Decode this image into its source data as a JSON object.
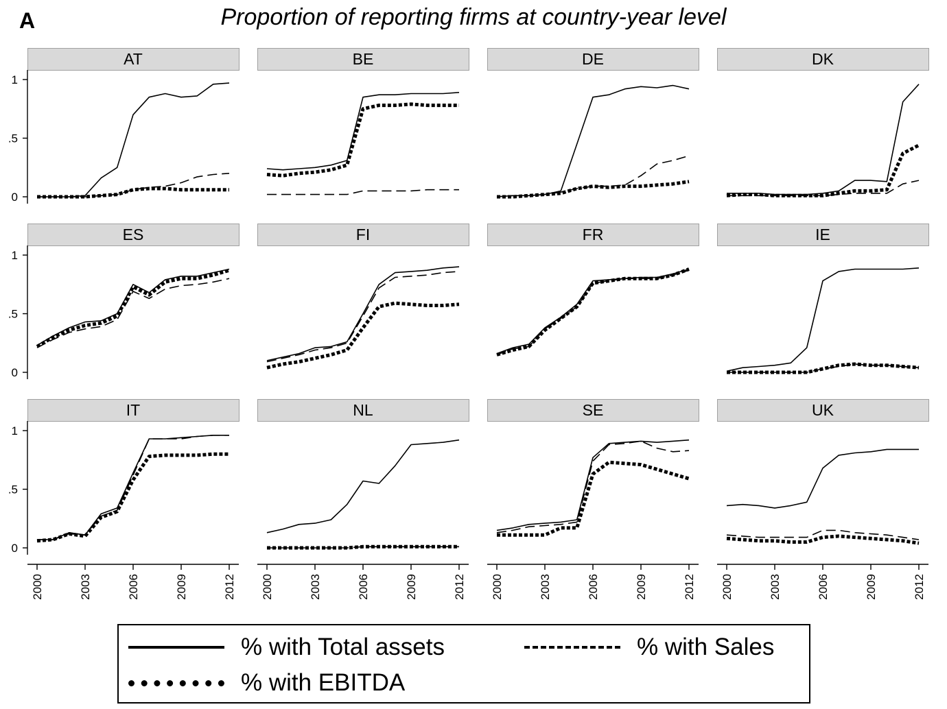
{
  "figure": {
    "panel_letter": "A",
    "title": "Proportion of reporting firms at country-year level"
  },
  "legend": {
    "items": [
      {
        "label": "% with Total assets",
        "style": "solid"
      },
      {
        "label": "% with Sales",
        "style": "dashed"
      },
      {
        "label": "% with EBITDA",
        "style": "dotted"
      }
    ]
  },
  "chart_data": {
    "type": "line",
    "title": "Proportion of reporting firms at country-year level",
    "x": [
      2000,
      2001,
      2002,
      2003,
      2004,
      2005,
      2006,
      2007,
      2008,
      2009,
      2010,
      2011,
      2012
    ],
    "x_ticks": [
      "2000",
      "2003",
      "2006",
      "2009",
      "2012"
    ],
    "y_ticks": [
      "0",
      ".5",
      "1"
    ],
    "ylim": [
      0,
      1
    ],
    "legend_position": "bottom",
    "grid": false,
    "panels": [
      {
        "name": "AT",
        "series": [
          {
            "name": "% with Total assets",
            "values": [
              0.0,
              0.0,
              0.0,
              0.01,
              0.16,
              0.25,
              0.7,
              0.85,
              0.88,
              0.85,
              0.86,
              0.96,
              0.97
            ]
          },
          {
            "name": "% with Sales",
            "values": [
              0.0,
              0.0,
              0.0,
              0.0,
              0.01,
              0.02,
              0.06,
              0.08,
              0.09,
              0.12,
              0.17,
              0.19,
              0.2
            ]
          },
          {
            "name": "% with EBITDA",
            "values": [
              0.0,
              0.0,
              0.0,
              0.0,
              0.01,
              0.02,
              0.06,
              0.07,
              0.07,
              0.06,
              0.06,
              0.06,
              0.06
            ]
          }
        ]
      },
      {
        "name": "BE",
        "series": [
          {
            "name": "% with Total assets",
            "values": [
              0.24,
              0.23,
              0.24,
              0.25,
              0.27,
              0.31,
              0.85,
              0.87,
              0.87,
              0.88,
              0.88,
              0.88,
              0.89
            ]
          },
          {
            "name": "% with Sales",
            "values": [
              0.02,
              0.02,
              0.02,
              0.02,
              0.02,
              0.02,
              0.05,
              0.05,
              0.05,
              0.05,
              0.06,
              0.06,
              0.06
            ]
          },
          {
            "name": "% with EBITDA",
            "values": [
              0.19,
              0.18,
              0.2,
              0.21,
              0.23,
              0.27,
              0.75,
              0.78,
              0.78,
              0.79,
              0.78,
              0.78,
              0.78
            ]
          }
        ]
      },
      {
        "name": "DE",
        "series": [
          {
            "name": "% with Total assets",
            "values": [
              0.0,
              0.01,
              0.01,
              0.02,
              0.05,
              0.45,
              0.85,
              0.87,
              0.92,
              0.94,
              0.93,
              0.95,
              0.92
            ]
          },
          {
            "name": "% with Sales",
            "values": [
              0.0,
              0.01,
              0.01,
              0.02,
              0.04,
              0.07,
              0.09,
              0.09,
              0.1,
              0.18,
              0.28,
              0.31,
              0.35
            ]
          },
          {
            "name": "% with EBITDA",
            "values": [
              0.0,
              0.0,
              0.01,
              0.02,
              0.03,
              0.07,
              0.09,
              0.08,
              0.09,
              0.09,
              0.1,
              0.11,
              0.13
            ]
          }
        ]
      },
      {
        "name": "DK",
        "series": [
          {
            "name": "% with Total assets",
            "values": [
              0.03,
              0.03,
              0.03,
              0.02,
              0.02,
              0.02,
              0.03,
              0.05,
              0.14,
              0.14,
              0.13,
              0.81,
              0.96
            ]
          },
          {
            "name": "% with Sales",
            "values": [
              0.01,
              0.01,
              0.01,
              0.01,
              0.01,
              0.01,
              0.01,
              0.02,
              0.03,
              0.03,
              0.03,
              0.11,
              0.14
            ]
          },
          {
            "name": "% with EBITDA",
            "values": [
              0.01,
              0.02,
              0.02,
              0.01,
              0.01,
              0.01,
              0.01,
              0.03,
              0.05,
              0.05,
              0.06,
              0.37,
              0.44
            ]
          }
        ]
      },
      {
        "name": "ES",
        "series": [
          {
            "name": "% with Total assets",
            "values": [
              0.23,
              0.31,
              0.38,
              0.43,
              0.44,
              0.5,
              0.75,
              0.68,
              0.79,
              0.82,
              0.82,
              0.85,
              0.88
            ]
          },
          {
            "name": "% with Sales",
            "values": [
              0.21,
              0.28,
              0.34,
              0.37,
              0.39,
              0.45,
              0.69,
              0.63,
              0.71,
              0.74,
              0.75,
              0.77,
              0.8
            ]
          },
          {
            "name": "% with EBITDA",
            "values": [
              0.22,
              0.3,
              0.36,
              0.4,
              0.42,
              0.48,
              0.73,
              0.66,
              0.77,
              0.8,
              0.8,
              0.83,
              0.87
            ]
          }
        ]
      },
      {
        "name": "FI",
        "series": [
          {
            "name": "% with Total assets",
            "values": [
              0.1,
              0.13,
              0.16,
              0.21,
              0.22,
              0.26,
              0.5,
              0.75,
              0.85,
              0.86,
              0.87,
              0.89,
              0.9
            ]
          },
          {
            "name": "% with Sales",
            "values": [
              0.09,
              0.12,
              0.15,
              0.19,
              0.21,
              0.25,
              0.48,
              0.72,
              0.81,
              0.82,
              0.83,
              0.85,
              0.86
            ]
          },
          {
            "name": "% with EBITDA",
            "values": [
              0.04,
              0.07,
              0.09,
              0.12,
              0.15,
              0.19,
              0.38,
              0.56,
              0.59,
              0.58,
              0.57,
              0.57,
              0.58
            ]
          }
        ]
      },
      {
        "name": "FR",
        "series": [
          {
            "name": "% with Total assets",
            "values": [
              0.16,
              0.21,
              0.24,
              0.38,
              0.47,
              0.58,
              0.78,
              0.79,
              0.8,
              0.81,
              0.81,
              0.84,
              0.88
            ]
          },
          {
            "name": "% with Sales",
            "values": [
              0.15,
              0.2,
              0.22,
              0.37,
              0.46,
              0.56,
              0.76,
              0.78,
              0.8,
              0.8,
              0.8,
              0.83,
              0.87
            ]
          },
          {
            "name": "% with EBITDA",
            "values": [
              0.15,
              0.19,
              0.22,
              0.36,
              0.46,
              0.56,
              0.76,
              0.78,
              0.8,
              0.8,
              0.8,
              0.83,
              0.88
            ]
          }
        ]
      },
      {
        "name": "IE",
        "series": [
          {
            "name": "% with Total assets",
            "values": [
              0.01,
              0.04,
              0.05,
              0.06,
              0.08,
              0.21,
              0.78,
              0.86,
              0.88,
              0.88,
              0.88,
              0.88,
              0.89
            ]
          },
          {
            "name": "% with Sales",
            "values": [
              0.0,
              0.0,
              0.0,
              0.0,
              0.0,
              0.0,
              0.03,
              0.05,
              0.07,
              0.06,
              0.06,
              0.05,
              0.04
            ]
          },
          {
            "name": "% with EBITDA",
            "values": [
              0.0,
              0.0,
              0.0,
              0.0,
              0.0,
              0.0,
              0.03,
              0.06,
              0.07,
              0.06,
              0.06,
              0.05,
              0.04
            ]
          }
        ]
      },
      {
        "name": "IT",
        "series": [
          {
            "name": "% with Total assets",
            "values": [
              0.07,
              0.07,
              0.13,
              0.11,
              0.29,
              0.34,
              0.64,
              0.93,
              0.93,
              0.94,
              0.95,
              0.96,
              0.96
            ]
          },
          {
            "name": "% with Sales",
            "values": [
              0.07,
              0.07,
              0.12,
              0.11,
              0.27,
              0.32,
              0.62,
              0.93,
              0.93,
              0.93,
              0.95,
              0.96,
              0.96
            ]
          },
          {
            "name": "% with EBITDA",
            "values": [
              0.06,
              0.07,
              0.12,
              0.1,
              0.26,
              0.31,
              0.58,
              0.78,
              0.79,
              0.79,
              0.79,
              0.8,
              0.8
            ]
          }
        ]
      },
      {
        "name": "NL",
        "series": [
          {
            "name": "% with Total assets",
            "values": [
              0.13,
              0.16,
              0.2,
              0.21,
              0.24,
              0.37,
              0.57,
              0.55,
              0.7,
              0.88,
              0.89,
              0.9,
              0.92
            ]
          },
          {
            "name": "% with Sales",
            "values": [
              0.0,
              0.0,
              0.0,
              0.0,
              0.0,
              0.0,
              0.01,
              0.01,
              0.01,
              0.01,
              0.01,
              0.01,
              0.01
            ]
          },
          {
            "name": "% with EBITDA",
            "values": [
              0.0,
              0.0,
              0.0,
              0.0,
              0.0,
              0.0,
              0.01,
              0.01,
              0.01,
              0.01,
              0.01,
              0.01,
              0.01
            ]
          }
        ]
      },
      {
        "name": "SE",
        "series": [
          {
            "name": "% with Total assets",
            "values": [
              0.15,
              0.17,
              0.2,
              0.21,
              0.22,
              0.24,
              0.77,
              0.89,
              0.9,
              0.91,
              0.9,
              0.91,
              0.92
            ]
          },
          {
            "name": "% with Sales",
            "values": [
              0.13,
              0.15,
              0.18,
              0.19,
              0.2,
              0.22,
              0.74,
              0.88,
              0.89,
              0.91,
              0.85,
              0.82,
              0.83
            ]
          },
          {
            "name": "% with EBITDA",
            "values": [
              0.11,
              0.11,
              0.11,
              0.11,
              0.17,
              0.17,
              0.63,
              0.73,
              0.72,
              0.71,
              0.67,
              0.63,
              0.59
            ]
          }
        ]
      },
      {
        "name": "UK",
        "series": [
          {
            "name": "% with Total assets",
            "values": [
              0.36,
              0.37,
              0.36,
              0.34,
              0.36,
              0.39,
              0.68,
              0.79,
              0.81,
              0.82,
              0.84,
              0.84,
              0.84
            ]
          },
          {
            "name": "% with Sales",
            "values": [
              0.11,
              0.1,
              0.09,
              0.09,
              0.09,
              0.09,
              0.15,
              0.15,
              0.13,
              0.12,
              0.11,
              0.09,
              0.07
            ]
          },
          {
            "name": "% with EBITDA",
            "values": [
              0.08,
              0.07,
              0.06,
              0.06,
              0.05,
              0.05,
              0.09,
              0.1,
              0.09,
              0.08,
              0.07,
              0.06,
              0.04
            ]
          }
        ]
      }
    ]
  }
}
